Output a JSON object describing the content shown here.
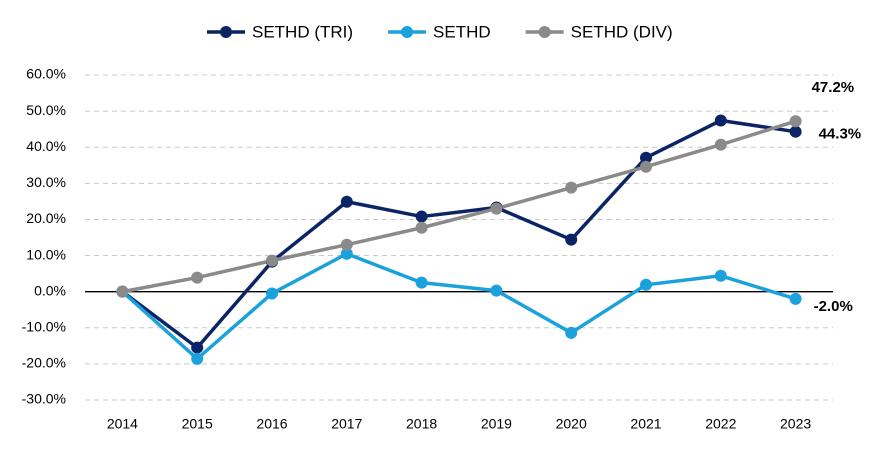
{
  "chart_data": {
    "type": "line",
    "categories": [
      "2014",
      "2015",
      "2016",
      "2017",
      "2018",
      "2019",
      "2020",
      "2021",
      "2022",
      "2023"
    ],
    "series": [
      {
        "name": "SETHD (TRI)",
        "color": "#0b2465",
        "values": [
          0,
          -15.5,
          8.3,
          24.9,
          20.8,
          23.3,
          14.4,
          37.1,
          47.4,
          44.3
        ],
        "value_labels": [
          null,
          null,
          null,
          null,
          null,
          null,
          null,
          null,
          null,
          "44.3%"
        ]
      },
      {
        "name": "SETHD",
        "color": "#1ba1dc",
        "values": [
          0,
          -18.6,
          -0.5,
          10.5,
          2.5,
          0.3,
          -11.4,
          1.9,
          4.4,
          -2.0
        ],
        "value_labels": [
          null,
          null,
          null,
          null,
          null,
          null,
          null,
          null,
          null,
          "-2.0%"
        ]
      },
      {
        "name": "SETHD (DIV)",
        "color": "#8a8a8a",
        "values": [
          0,
          3.9,
          8.6,
          13.0,
          17.7,
          23.0,
          28.8,
          34.6,
          40.7,
          47.2
        ],
        "value_labels": [
          null,
          null,
          null,
          null,
          null,
          null,
          null,
          null,
          null,
          "47.2%"
        ]
      }
    ],
    "ylim": [
      -30,
      60
    ],
    "yticks": [
      {
        "value": -30,
        "label": "-30.0%"
      },
      {
        "value": -20,
        "label": "-20.0%"
      },
      {
        "value": -10,
        "label": "-10.0%"
      },
      {
        "value": 0,
        "label": "0.0%"
      },
      {
        "value": 10,
        "label": "10.0%"
      },
      {
        "value": 20,
        "label": "20.0%"
      },
      {
        "value": 30,
        "label": "30.0%"
      },
      {
        "value": 40,
        "label": "40.0%"
      },
      {
        "value": 50,
        "label": "50.0%"
      },
      {
        "value": 60,
        "label": "60.0%"
      }
    ],
    "grid": true,
    "legend": "top"
  }
}
